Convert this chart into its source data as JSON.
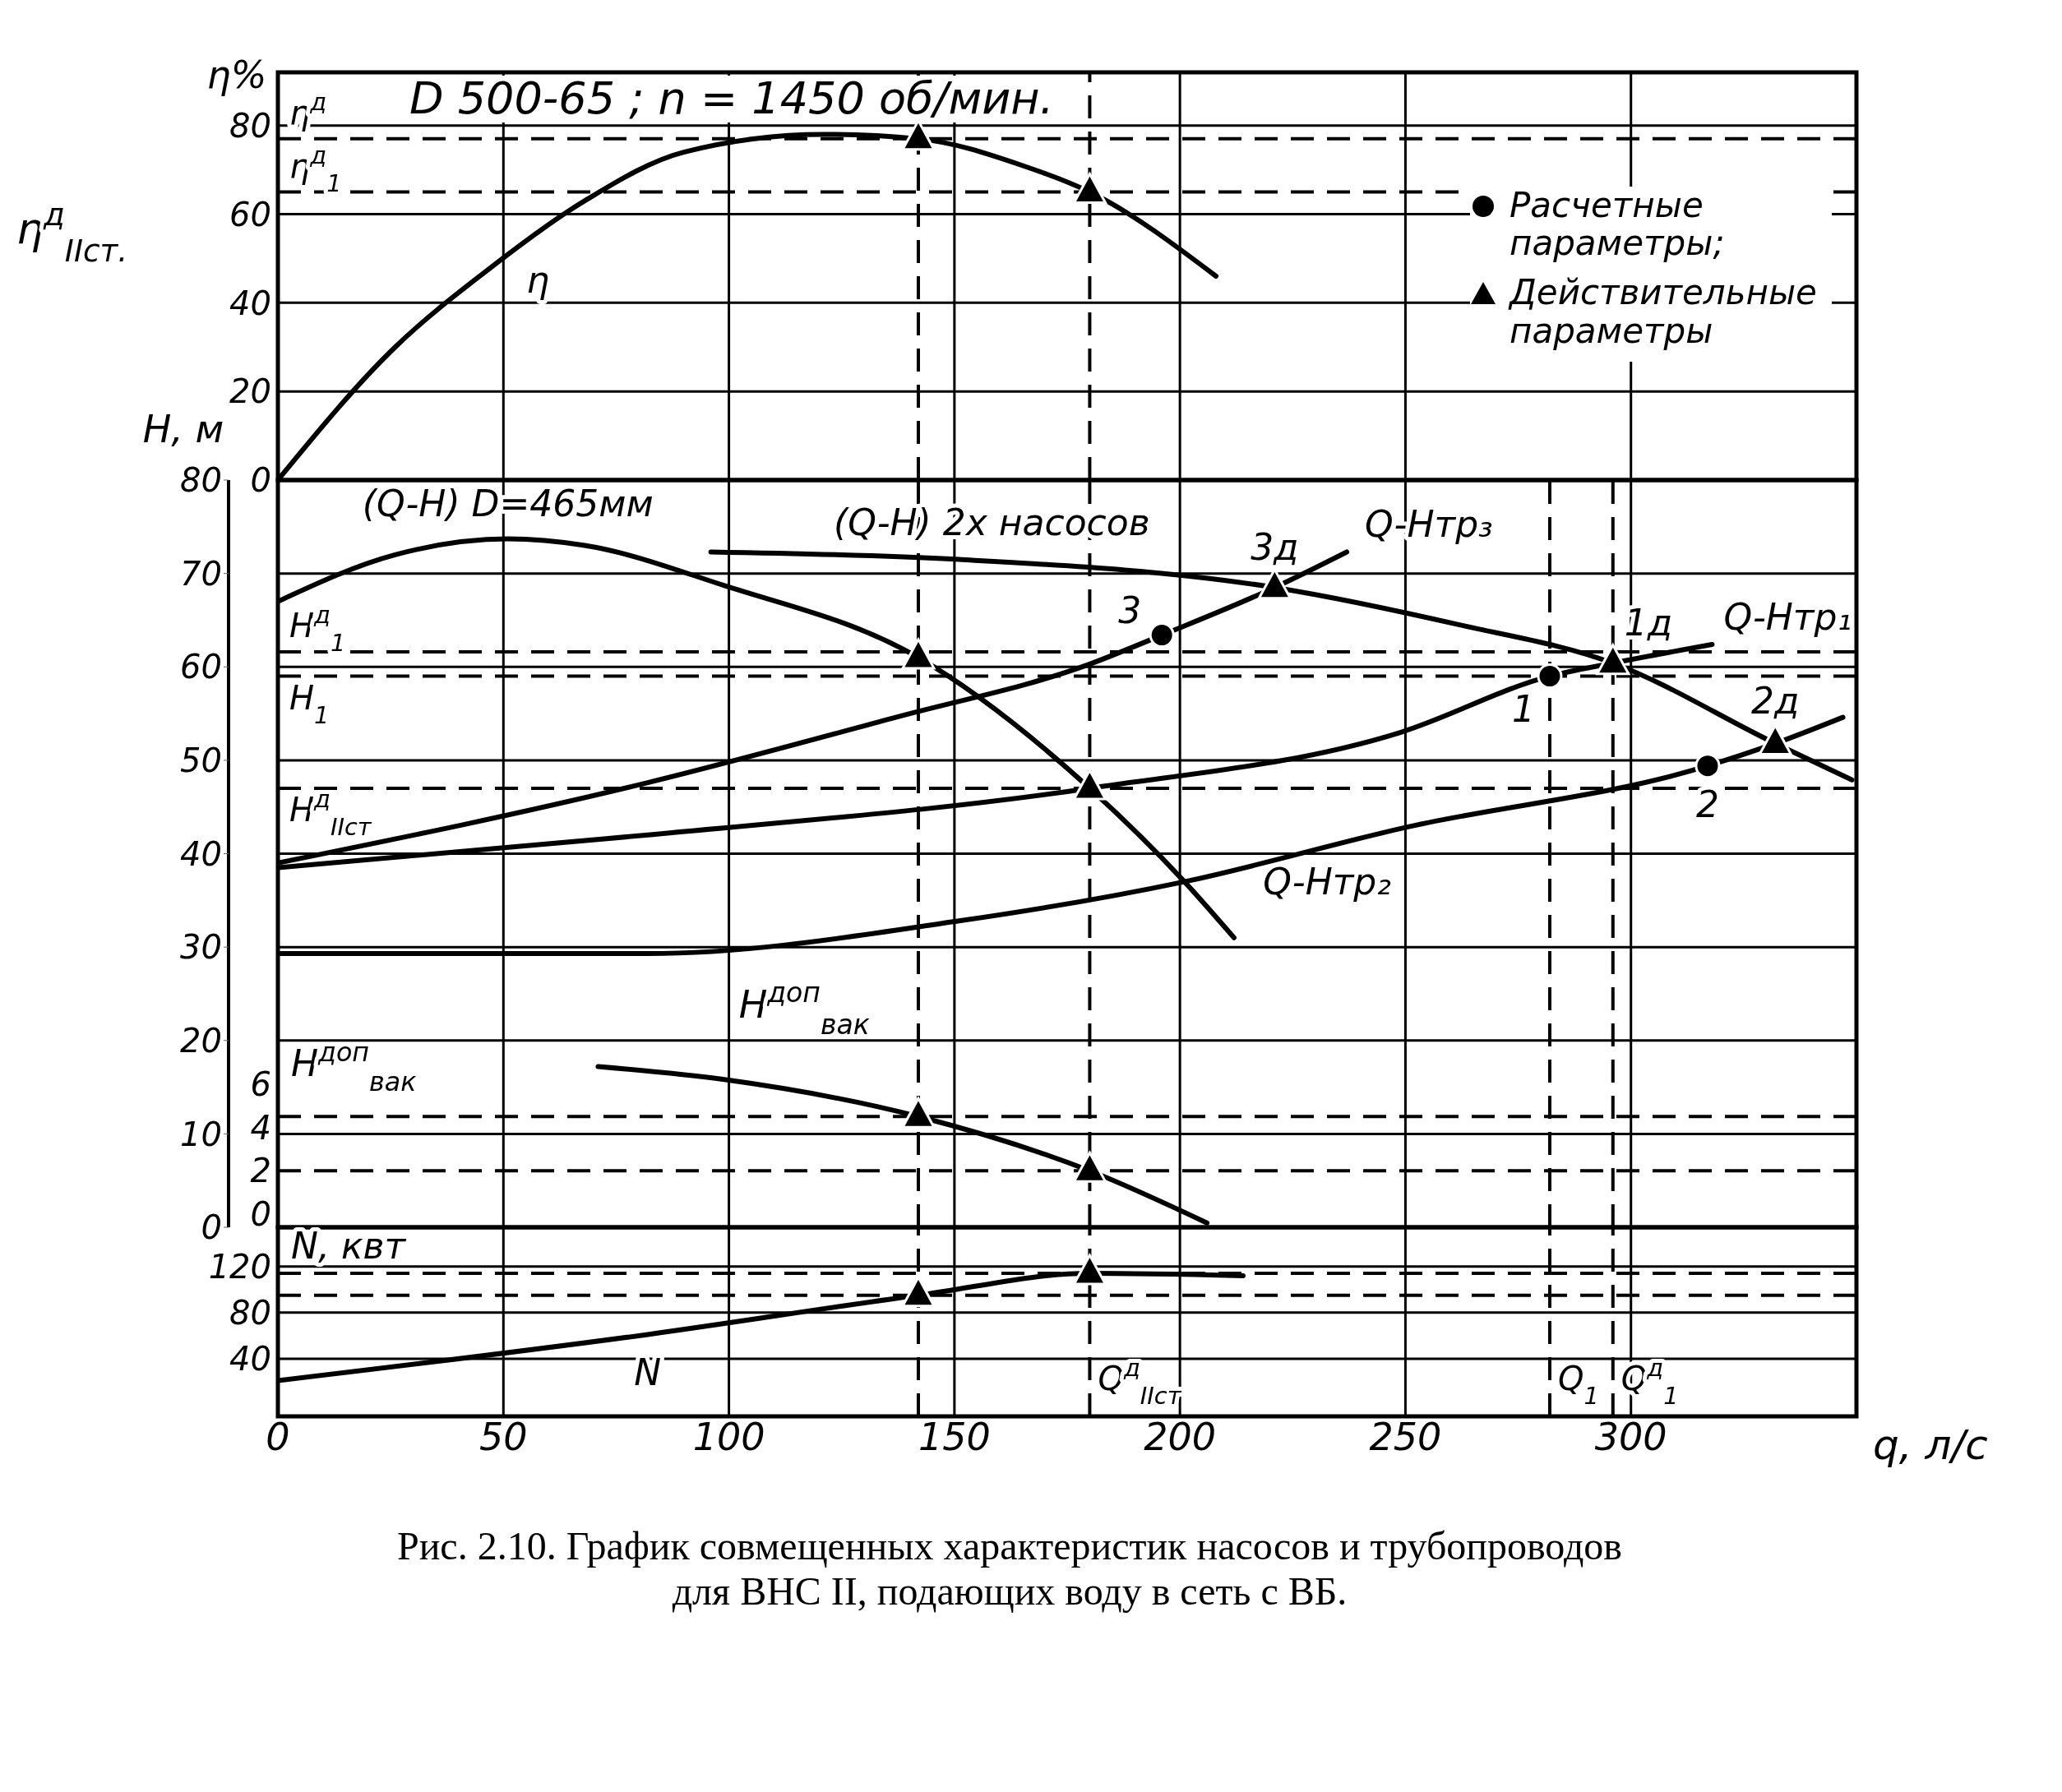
{
  "chart_data": [
    {
      "type": "line",
      "title": "D 500-65 ; n = 1450 об/мин.",
      "ylabel": "η%",
      "tick_labels": "y",
      "xlim": [
        0,
        350
      ],
      "xticks": [
        0,
        50,
        100,
        150,
        200,
        250,
        300
      ],
      "ylim": [
        0,
        92
      ],
      "yticks": [
        0,
        20,
        40,
        60,
        80
      ],
      "grid": true,
      "series": [
        {
          "color": "#000000",
          "marker": "none",
          "x": [
            0,
            26,
            46,
            68,
            90,
            121,
            142,
            165,
            180,
            208
          ],
          "values": [
            0,
            30,
            47,
            63,
            74,
            78,
            77,
            71,
            65,
            46
          ]
        },
        {
          "type": "scatter",
          "color": "#000000",
          "marker": "triangle",
          "x": [
            142,
            180
          ],
          "values": [
            77,
            65
          ]
        }
      ],
      "ref_lines": [
        {
          "axis": "y",
          "value": 77,
          "label": "η$^{д}$",
          "line_style": "dashed"
        },
        {
          "axis": "y",
          "value": 65,
          "label": "η$^{д}$$_{1}$",
          "line_style": "dashed"
        },
        {
          "axis": "x",
          "value": 142,
          "line_style": "dashed"
        },
        {
          "axis": "x",
          "value": 180,
          "line_style": "dashed"
        }
      ],
      "annotations": [
        "η$^{д}$$_{IIст.}$",
        {
          "text": "η",
          "x": 46,
          "y": 47
        }
      ]
    },
    {
      "type": "line",
      "ylabel": "H, м",
      "y2label": "H$^{доп}$$_{вак}$",
      "tick_labels": "y",
      "legend": "top right",
      "xlim": [
        0,
        350
      ],
      "xticks": [
        0,
        50,
        100,
        150,
        200,
        250,
        300
      ],
      "ylim": [
        0,
        80
      ],
      "yticks": [
        0,
        10,
        20,
        30,
        40,
        50,
        60,
        70,
        80
      ],
      "y2lim": [
        -0.6,
        33.8
      ],
      "y2ticks": [
        0,
        2,
        4,
        6
      ],
      "grid": true,
      "series": [
        {
          "color": "#000000",
          "marker": "none",
          "x": [
            0,
            26,
            51,
            68,
            99,
            142,
            180,
            201,
            212
          ],
          "values": [
            67,
            72,
            73.7,
            73,
            68.7,
            61,
            47,
            37,
            31
          ]
        },
        {
          "color": "#000000",
          "marker": "none",
          "x": [
            96,
            151,
            221,
            262,
            296,
            332,
            349
          ],
          "values": [
            72.3,
            71.5,
            68.5,
            64.5,
            60.4,
            51.8,
            47.9
          ]
        },
        {
          "color": "#000000",
          "marker": "none",
          "x": [
            0,
            82,
            137,
            180,
            196,
            221,
            237
          ],
          "values": [
            39,
            47.6,
            54.6,
            60.3,
            63.4,
            68.5,
            72.3
          ]
        },
        {
          "color": "#000000",
          "marker": "none",
          "x": [
            0,
            82,
            180,
            249,
            282,
            296,
            318
          ],
          "values": [
            38.5,
            42,
            47,
            53,
            59,
            60.4,
            62.4
          ]
        },
        {
          "color": "#000000",
          "marker": "none",
          "x": [
            0,
            82,
            151,
            201,
            249,
            317,
            332,
            347
          ],
          "values": [
            29.3,
            29.3,
            32.8,
            37,
            42.7,
            49.4,
            51.8,
            54.6
          ]
        },
        {
          "axis": "y2",
          "color": "#000000",
          "marker": "none",
          "x": [
            71,
            99,
            142,
            180,
            206
          ],
          "values": [
            6.8,
            6.2,
            4.5,
            2.0,
            -0.4
          ]
        },
        {
          "type": "scatter",
          "name": "Расчетные параметры;",
          "color": "#000000",
          "marker": "circle",
          "x": [
            196,
            282,
            317
          ],
          "values": [
            63.4,
            59,
            49.4
          ]
        },
        {
          "type": "scatter",
          "name": "Действительные параметры",
          "color": "#000000",
          "marker": "triangle",
          "x": [
            142,
            180,
            221,
            296,
            332
          ],
          "values": [
            61,
            47,
            68.5,
            60.4,
            51.8
          ]
        },
        {
          "type": "scatter",
          "axis": "y2",
          "color": "#000000",
          "marker": "triangle",
          "x": [
            142,
            180
          ],
          "values": [
            4.5,
            2.0
          ]
        }
      ],
      "ref_lines": [
        {
          "axis": "y",
          "value": 61.6,
          "label": "H$^{д}$$_{1}$",
          "line_style": "dashed"
        },
        {
          "axis": "y",
          "value": 59,
          "label": "H$_{1}$",
          "line_style": "dashed"
        },
        {
          "axis": "y",
          "value": 47,
          "label": "H$^{д}$$_{IIст}$",
          "line_style": "dashed"
        },
        {
          "axis": "y2",
          "value": 4.5,
          "line_style": "dashed"
        },
        {
          "axis": "y2",
          "value": 2.0,
          "line_style": "dashed"
        },
        {
          "axis": "x",
          "value": 142,
          "line_style": "dashed"
        },
        {
          "axis": "x",
          "value": 180,
          "line_style": "dashed"
        },
        {
          "axis": "x",
          "value": 282,
          "line_style": "dashed"
        },
        {
          "axis": "x",
          "value": 296,
          "line_style": "dashed"
        }
      ],
      "annotations": [
        "H$^{доп}$$_{вак}$",
        {
          "text": "3",
          "x": 196,
          "y": 63.4
        },
        {
          "text": "3д",
          "x": 221,
          "y": 68.5
        },
        {
          "text": "1",
          "x": 282,
          "y": 59
        },
        {
          "text": "1д",
          "x": 296,
          "y": 60.4
        },
        {
          "text": "2",
          "x": 317,
          "y": 49.4
        },
        {
          "text": "2д",
          "x": 332,
          "y": 51.8
        },
        {
          "text": "(Q-H) D=465мм",
          "x": 51,
          "y": 73.7
        },
        {
          "text": "(Q-H) 2х насосов",
          "x": 151,
          "y": 71.5
        },
        {
          "text": "Q-Hтр₃",
          "x": 237,
          "y": 72.3
        },
        {
          "text": "Q-Hтр₁",
          "x": 318,
          "y": 62.4
        },
        {
          "text": "Q-Hтр₂",
          "x": 249,
          "y": 42.7
        }
      ]
    },
    {
      "type": "line",
      "xlabel": "q, л/с",
      "ylabel": "N, квт",
      "xlim": [
        0,
        350
      ],
      "xticks": [
        0,
        50,
        100,
        150,
        200,
        250,
        300
      ],
      "ylim": [
        -10,
        154
      ],
      "yticks": [
        40,
        80,
        120
      ],
      "grid": true,
      "series": [
        {
          "color": "#000000",
          "marker": "none",
          "x": [
            0,
            82,
            142,
            180,
            214
          ],
          "values": [
            21,
            61,
            95,
            114,
            112
          ]
        },
        {
          "type": "scatter",
          "color": "#000000",
          "marker": "triangle",
          "x": [
            142,
            180
          ],
          "values": [
            95,
            114
          ]
        }
      ],
      "ref_lines": [
        {
          "axis": "y",
          "value": 114,
          "line_style": "dashed"
        },
        {
          "axis": "y",
          "value": 95,
          "line_style": "dashed"
        },
        {
          "axis": "x",
          "value": 142,
          "line_style": "dashed"
        },
        {
          "axis": "x",
          "value": 180,
          "label": "Q$^{д}$$_{IIст}$",
          "line_style": "dashed"
        },
        {
          "axis": "x",
          "value": 282,
          "label": "Q$_{1}$",
          "line_style": "dashed"
        },
        {
          "axis": "x",
          "value": 296,
          "label": "Q$^{д}$$_{1}$",
          "line_style": "dashed"
        }
      ],
      "annotations": [
        "Рис. 2.10. График совмещенных характеристик насосов и трубопроводов для ВНС II, подающих воду в сеть с ВБ.",
        {
          "text": "N",
          "x": 82,
          "y": 61
        }
      ]
    }
  ]
}
